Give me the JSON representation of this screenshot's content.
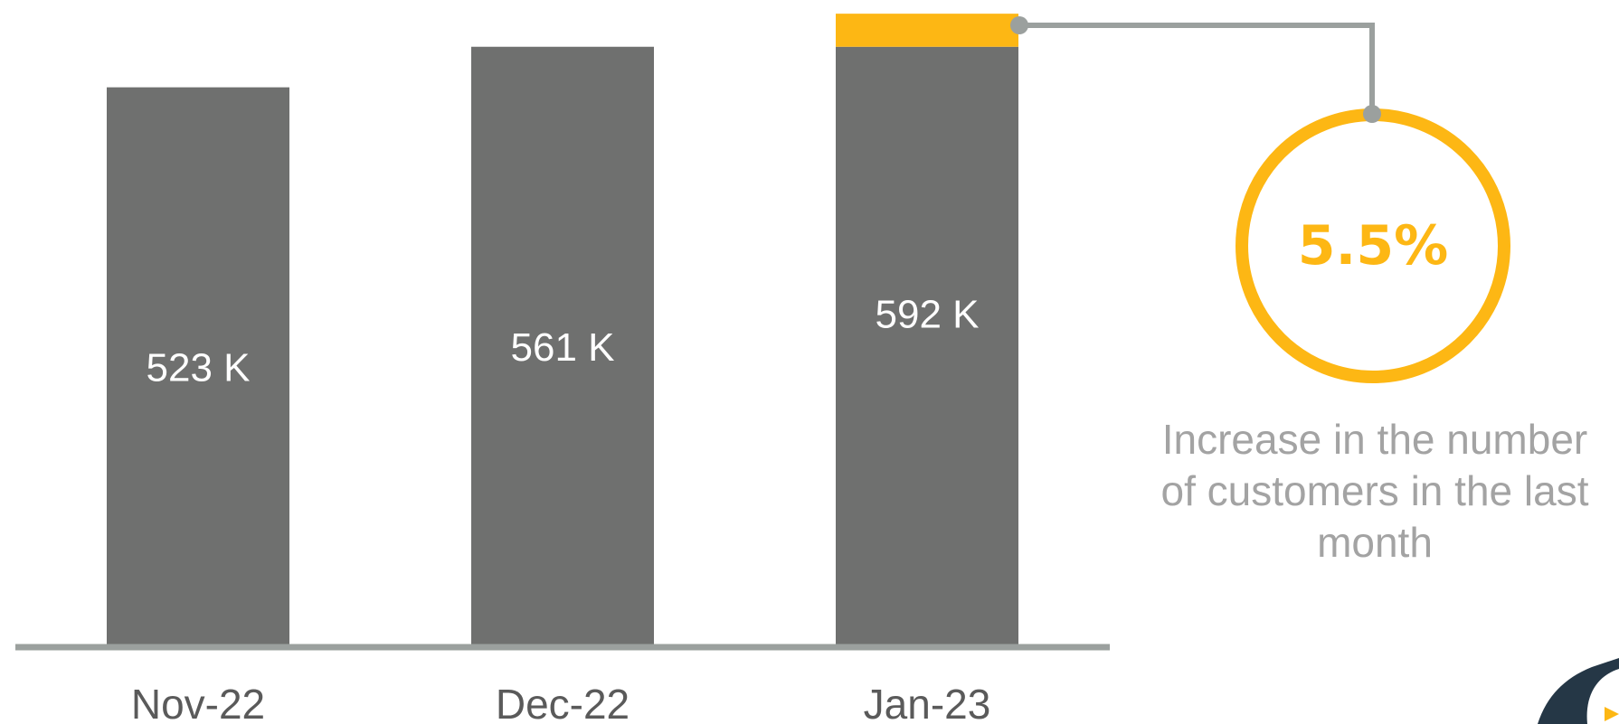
{
  "colors": {
    "bar": "#6f706f",
    "increase": "#fdb714",
    "axis": "#9ba09e",
    "connector": "#9ba09e",
    "caption": "#a3a3a3",
    "tick": "#5a5a5a",
    "bar_label": "#ffffff",
    "logo": "#253746"
  },
  "chart_data": {
    "type": "bar",
    "categories": [
      "Nov-22",
      "Dec-22",
      "Jan-23"
    ],
    "values": [
      523,
      561,
      592
    ],
    "unit": "K",
    "value_labels": [
      "523 K",
      "561 K",
      "592 K"
    ],
    "increase_segment": {
      "category": "Jan-23",
      "from": 561,
      "to": 592
    },
    "ylim": [
      0,
      600
    ],
    "grid": false,
    "title": "",
    "xlabel": "",
    "ylabel": ""
  },
  "callout": {
    "value": "5.5%",
    "caption_lines": [
      "Increase in the number",
      "of customers in the last",
      "month"
    ]
  },
  "icons": {
    "corner_logo": "logo-icon"
  }
}
